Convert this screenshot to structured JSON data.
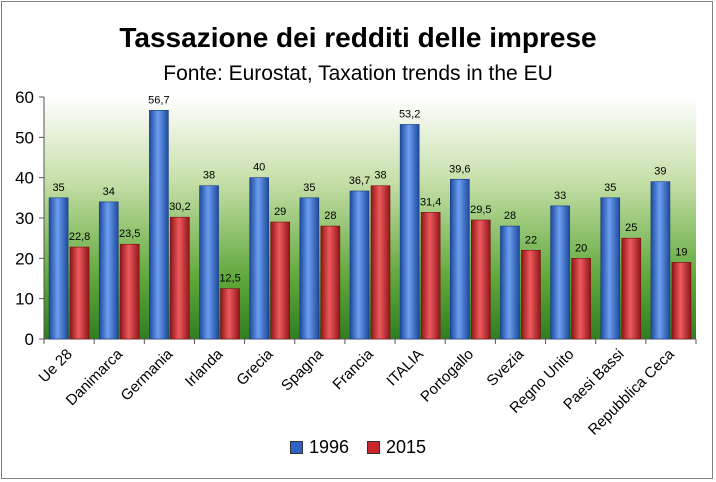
{
  "chart_data": {
    "type": "bar",
    "title": "Tassazione dei redditi delle imprese",
    "subtitle": "Fonte: Eurostat, Taxation trends in the EU",
    "categories": [
      "Ue 28",
      "Danimarca",
      "Germania",
      "Irlanda",
      "Grecia",
      "Spagna",
      "Francia",
      "ITALIA",
      "Portogallo",
      "Svezia",
      "Regno Unito",
      "Paesi Bassi",
      "Repubblica Ceca"
    ],
    "series": [
      {
        "name": "1996",
        "color": "#2E62C4",
        "values": [
          35,
          34,
          56.7,
          38,
          40,
          35,
          36.7,
          53.2,
          39.6,
          28,
          33,
          35,
          39
        ],
        "labels": [
          "35",
          "34",
          "56,7",
          "38",
          "40",
          "35",
          "36,7",
          "53,2",
          "39,6",
          "28",
          "33",
          "35",
          "39"
        ]
      },
      {
        "name": "2015",
        "color": "#C9262C",
        "values": [
          22.8,
          23.5,
          30.2,
          12.5,
          29,
          28,
          38,
          31.4,
          29.5,
          22,
          20,
          25,
          19
        ],
        "labels": [
          "22,8",
          "23,5",
          "30,2",
          "12,5",
          "29",
          "28",
          "38",
          "31,4",
          "29,5",
          "22",
          "20",
          "25",
          "19"
        ]
      }
    ],
    "ylim": [
      0,
      60
    ],
    "yticks": [
      "0",
      "10",
      "20",
      "30",
      "40",
      "50",
      "60"
    ],
    "grid": false,
    "legend_position": "bottom"
  }
}
